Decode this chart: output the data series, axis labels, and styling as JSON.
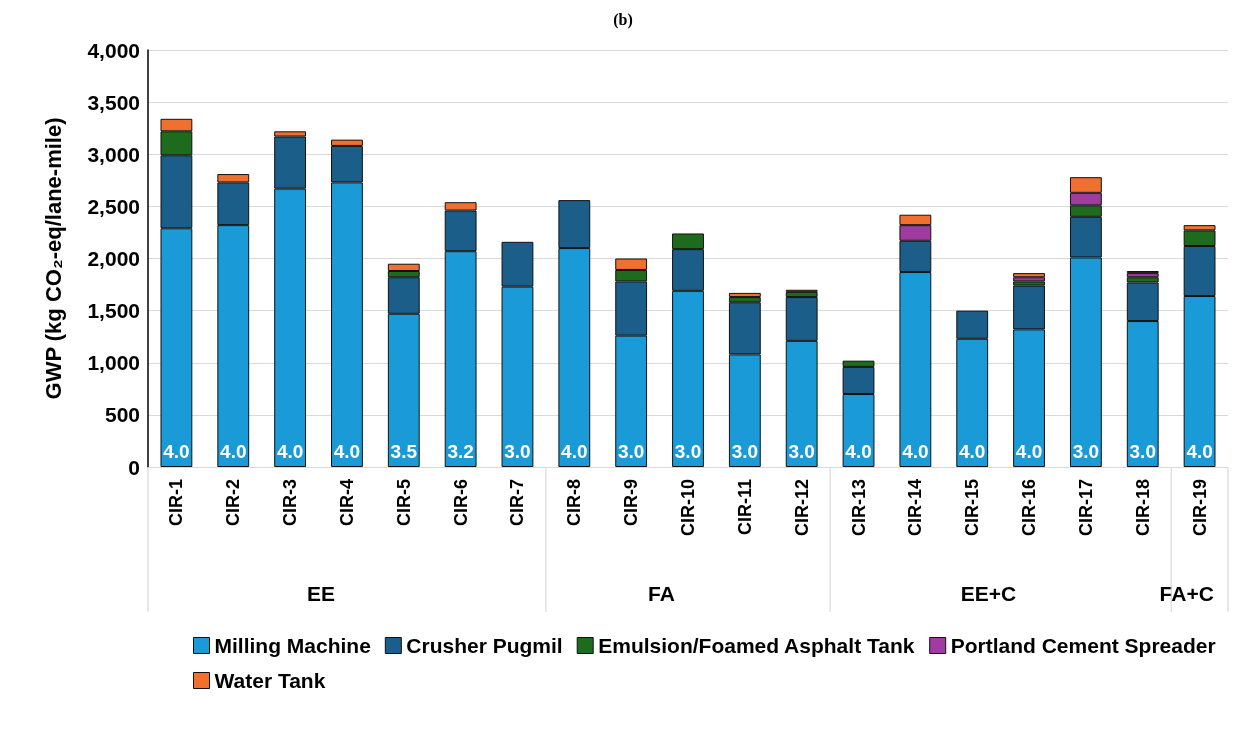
{
  "chart_data": {
    "type": "bar",
    "title": "(b)",
    "ylabel": "GWP (kg CO₂-eq/lane-mile)",
    "categories": [
      "CIR-1",
      "CIR-2",
      "CIR-3",
      "CIR-4",
      "CIR-5",
      "CIR-6",
      "CIR-7",
      "CIR-8",
      "CIR-9",
      "CIR-10",
      "CIR-11",
      "CIR-12",
      "CIR-13",
      "CIR-14",
      "CIR-15",
      "CIR-16",
      "CIR-17",
      "CIR-18",
      "CIR-19"
    ],
    "stacked": true,
    "series": [
      {
        "name": "Milling Machine",
        "color": "#1a9bd7",
        "values": [
          2290,
          2320,
          2670,
          2730,
          1470,
          2070,
          1730,
          2100,
          1260,
          1690,
          1080,
          1210,
          700,
          1870,
          1230,
          1320,
          2010,
          1400,
          1640
        ]
      },
      {
        "name": "Crusher Pugmil",
        "color": "#1b5e8a",
        "values": [
          700,
          410,
          500,
          350,
          350,
          390,
          430,
          460,
          520,
          400,
          500,
          420,
          260,
          300,
          270,
          420,
          390,
          370,
          480
        ]
      },
      {
        "name": "Emulsion/Foamed Asphalt Tank",
        "color": "#1e6b1e",
        "values": [
          230,
          null,
          null,
          null,
          60,
          null,
          null,
          null,
          110,
          150,
          50,
          50,
          60,
          null,
          null,
          40,
          110,
          50,
          150
        ]
      },
      {
        "name": "Portland Cement Spreader",
        "color": "#a03ca0",
        "values": [
          null,
          null,
          null,
          null,
          null,
          null,
          null,
          null,
          null,
          null,
          null,
          null,
          null,
          150,
          null,
          40,
          120,
          40,
          null
        ]
      },
      {
        "name": "Water Tank",
        "color": "#f07030",
        "values": [
          120,
          80,
          50,
          60,
          70,
          80,
          null,
          null,
          110,
          null,
          40,
          20,
          null,
          100,
          null,
          40,
          150,
          20,
          50
        ]
      }
    ],
    "ylim": [
      0,
      4000
    ],
    "yticks": [
      {
        "value": 0,
        "label": "0"
      },
      {
        "value": 500,
        "label": "500"
      },
      {
        "value": 1000,
        "label": "1,000"
      },
      {
        "value": 1500,
        "label": "1,500"
      },
      {
        "value": 2000,
        "label": "2,000"
      },
      {
        "value": 2500,
        "label": "2,500"
      },
      {
        "value": 3000,
        "label": "3,000"
      },
      {
        "value": 3500,
        "label": "3,500"
      },
      {
        "value": 4000,
        "label": "4,000"
      }
    ],
    "grid": "y",
    "legend": "bottom",
    "annotations": [
      {
        "text": "4.0",
        "x": "CIR-1",
        "y": 0
      },
      {
        "text": "4.0",
        "x": "CIR-2",
        "y": 0
      },
      {
        "text": "4.0",
        "x": "CIR-3",
        "y": 0
      },
      {
        "text": "4.0",
        "x": "CIR-4",
        "y": 0
      },
      {
        "text": "3.5",
        "x": "CIR-5",
        "y": 0
      },
      {
        "text": "3.2",
        "x": "CIR-6",
        "y": 0
      },
      {
        "text": "3.0",
        "x": "CIR-7",
        "y": 0
      },
      {
        "text": "4.0",
        "x": "CIR-8",
        "y": 0
      },
      {
        "text": "3.0",
        "x": "CIR-9",
        "y": 0
      },
      {
        "text": "3.0",
        "x": "CIR-10",
        "y": 0
      },
      {
        "text": "3.0",
        "x": "CIR-11",
        "y": 0
      },
      {
        "text": "3.0",
        "x": "CIR-12",
        "y": 0
      },
      {
        "text": "4.0",
        "x": "CIR-13",
        "y": 0
      },
      {
        "text": "4.0",
        "x": "CIR-14",
        "y": 0
      },
      {
        "text": "4.0",
        "x": "CIR-15",
        "y": 0
      },
      {
        "text": "4.0",
        "x": "CIR-16",
        "y": 0
      },
      {
        "text": "3.0",
        "x": "CIR-17",
        "y": 0
      },
      {
        "text": "3.0",
        "x": "CIR-18",
        "y": 0
      },
      {
        "text": "4.0",
        "x": "CIR-19",
        "y": 0
      },
      "EE",
      "FA",
      "EE+C",
      "FA+C"
    ]
  }
}
